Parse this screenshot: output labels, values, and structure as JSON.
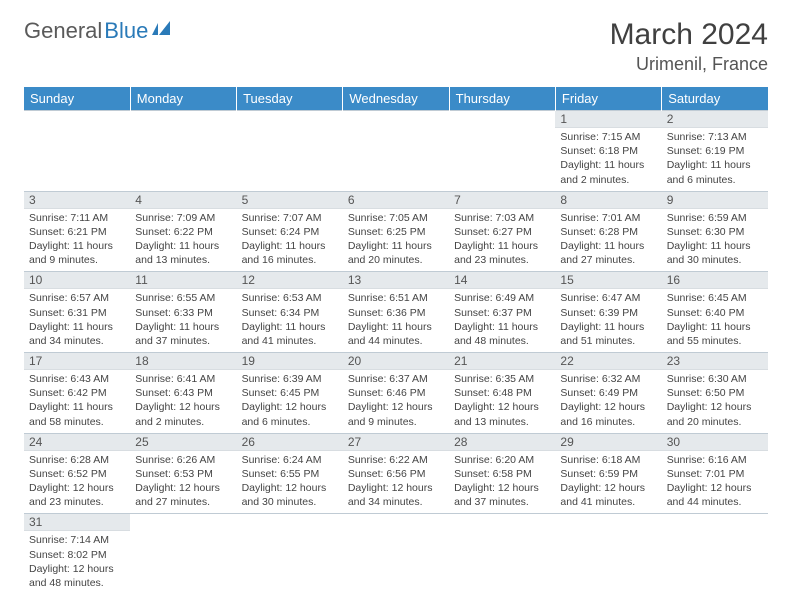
{
  "logo": {
    "text1": "General",
    "text2": "Blue"
  },
  "title": "March 2024",
  "location": "Urimenil, France",
  "day_headers": [
    "Sunday",
    "Monday",
    "Tuesday",
    "Wednesday",
    "Thursday",
    "Friday",
    "Saturday"
  ],
  "colors": {
    "header_bg": "#3b8bc8",
    "daynum_bg": "#e5e9ec",
    "border": "#c0cbd4",
    "logo_gray": "#5a5a5a",
    "logo_blue": "#2a7ab8"
  },
  "weeks": [
    [
      null,
      null,
      null,
      null,
      null,
      {
        "n": "1",
        "sr": "Sunrise: 7:15 AM",
        "ss": "Sunset: 6:18 PM",
        "dl": "Daylight: 11 hours and 2 minutes."
      },
      {
        "n": "2",
        "sr": "Sunrise: 7:13 AM",
        "ss": "Sunset: 6:19 PM",
        "dl": "Daylight: 11 hours and 6 minutes."
      }
    ],
    [
      {
        "n": "3",
        "sr": "Sunrise: 7:11 AM",
        "ss": "Sunset: 6:21 PM",
        "dl": "Daylight: 11 hours and 9 minutes."
      },
      {
        "n": "4",
        "sr": "Sunrise: 7:09 AM",
        "ss": "Sunset: 6:22 PM",
        "dl": "Daylight: 11 hours and 13 minutes."
      },
      {
        "n": "5",
        "sr": "Sunrise: 7:07 AM",
        "ss": "Sunset: 6:24 PM",
        "dl": "Daylight: 11 hours and 16 minutes."
      },
      {
        "n": "6",
        "sr": "Sunrise: 7:05 AM",
        "ss": "Sunset: 6:25 PM",
        "dl": "Daylight: 11 hours and 20 minutes."
      },
      {
        "n": "7",
        "sr": "Sunrise: 7:03 AM",
        "ss": "Sunset: 6:27 PM",
        "dl": "Daylight: 11 hours and 23 minutes."
      },
      {
        "n": "8",
        "sr": "Sunrise: 7:01 AM",
        "ss": "Sunset: 6:28 PM",
        "dl": "Daylight: 11 hours and 27 minutes."
      },
      {
        "n": "9",
        "sr": "Sunrise: 6:59 AM",
        "ss": "Sunset: 6:30 PM",
        "dl": "Daylight: 11 hours and 30 minutes."
      }
    ],
    [
      {
        "n": "10",
        "sr": "Sunrise: 6:57 AM",
        "ss": "Sunset: 6:31 PM",
        "dl": "Daylight: 11 hours and 34 minutes."
      },
      {
        "n": "11",
        "sr": "Sunrise: 6:55 AM",
        "ss": "Sunset: 6:33 PM",
        "dl": "Daylight: 11 hours and 37 minutes."
      },
      {
        "n": "12",
        "sr": "Sunrise: 6:53 AM",
        "ss": "Sunset: 6:34 PM",
        "dl": "Daylight: 11 hours and 41 minutes."
      },
      {
        "n": "13",
        "sr": "Sunrise: 6:51 AM",
        "ss": "Sunset: 6:36 PM",
        "dl": "Daylight: 11 hours and 44 minutes."
      },
      {
        "n": "14",
        "sr": "Sunrise: 6:49 AM",
        "ss": "Sunset: 6:37 PM",
        "dl": "Daylight: 11 hours and 48 minutes."
      },
      {
        "n": "15",
        "sr": "Sunrise: 6:47 AM",
        "ss": "Sunset: 6:39 PM",
        "dl": "Daylight: 11 hours and 51 minutes."
      },
      {
        "n": "16",
        "sr": "Sunrise: 6:45 AM",
        "ss": "Sunset: 6:40 PM",
        "dl": "Daylight: 11 hours and 55 minutes."
      }
    ],
    [
      {
        "n": "17",
        "sr": "Sunrise: 6:43 AM",
        "ss": "Sunset: 6:42 PM",
        "dl": "Daylight: 11 hours and 58 minutes."
      },
      {
        "n": "18",
        "sr": "Sunrise: 6:41 AM",
        "ss": "Sunset: 6:43 PM",
        "dl": "Daylight: 12 hours and 2 minutes."
      },
      {
        "n": "19",
        "sr": "Sunrise: 6:39 AM",
        "ss": "Sunset: 6:45 PM",
        "dl": "Daylight: 12 hours and 6 minutes."
      },
      {
        "n": "20",
        "sr": "Sunrise: 6:37 AM",
        "ss": "Sunset: 6:46 PM",
        "dl": "Daylight: 12 hours and 9 minutes."
      },
      {
        "n": "21",
        "sr": "Sunrise: 6:35 AM",
        "ss": "Sunset: 6:48 PM",
        "dl": "Daylight: 12 hours and 13 minutes."
      },
      {
        "n": "22",
        "sr": "Sunrise: 6:32 AM",
        "ss": "Sunset: 6:49 PM",
        "dl": "Daylight: 12 hours and 16 minutes."
      },
      {
        "n": "23",
        "sr": "Sunrise: 6:30 AM",
        "ss": "Sunset: 6:50 PM",
        "dl": "Daylight: 12 hours and 20 minutes."
      }
    ],
    [
      {
        "n": "24",
        "sr": "Sunrise: 6:28 AM",
        "ss": "Sunset: 6:52 PM",
        "dl": "Daylight: 12 hours and 23 minutes."
      },
      {
        "n": "25",
        "sr": "Sunrise: 6:26 AM",
        "ss": "Sunset: 6:53 PM",
        "dl": "Daylight: 12 hours and 27 minutes."
      },
      {
        "n": "26",
        "sr": "Sunrise: 6:24 AM",
        "ss": "Sunset: 6:55 PM",
        "dl": "Daylight: 12 hours and 30 minutes."
      },
      {
        "n": "27",
        "sr": "Sunrise: 6:22 AM",
        "ss": "Sunset: 6:56 PM",
        "dl": "Daylight: 12 hours and 34 minutes."
      },
      {
        "n": "28",
        "sr": "Sunrise: 6:20 AM",
        "ss": "Sunset: 6:58 PM",
        "dl": "Daylight: 12 hours and 37 minutes."
      },
      {
        "n": "29",
        "sr": "Sunrise: 6:18 AM",
        "ss": "Sunset: 6:59 PM",
        "dl": "Daylight: 12 hours and 41 minutes."
      },
      {
        "n": "30",
        "sr": "Sunrise: 6:16 AM",
        "ss": "Sunset: 7:01 PM",
        "dl": "Daylight: 12 hours and 44 minutes."
      }
    ],
    [
      {
        "n": "31",
        "sr": "Sunrise: 7:14 AM",
        "ss": "Sunset: 8:02 PM",
        "dl": "Daylight: 12 hours and 48 minutes."
      },
      null,
      null,
      null,
      null,
      null,
      null
    ]
  ]
}
